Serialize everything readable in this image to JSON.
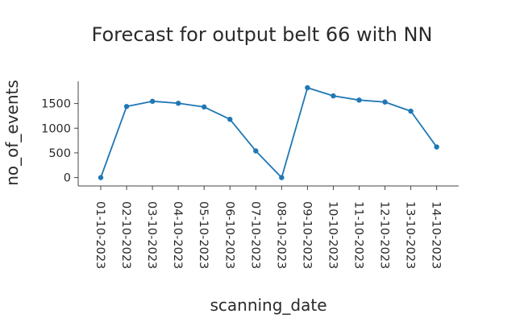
{
  "chart_data": {
    "type": "line",
    "title": "Forecast for output belt 66 with NN",
    "xlabel": "scanning_date",
    "ylabel": "no_of_events",
    "x": [
      "01-10-2023",
      "02-10-2023",
      "03-10-2023",
      "04-10-2023",
      "05-10-2023",
      "06-10-2023",
      "07-10-2023",
      "08-10-2023",
      "09-10-2023",
      "10-10-2023",
      "11-10-2023",
      "12-10-2023",
      "13-10-2023",
      "14-10-2023"
    ],
    "series": [
      {
        "values": [
          0,
          1440,
          1545,
          1505,
          1430,
          1180,
          540,
          0,
          1820,
          1655,
          1570,
          1530,
          1345,
          620
        ],
        "color": "#1f77b4"
      }
    ],
    "yticks": [
      0,
      500,
      1000,
      1500
    ],
    "ytick_labels": [
      "0",
      "500",
      "1000",
      "1500"
    ],
    "ylim": [
      -170,
      1950
    ],
    "grid": false,
    "legend": "none"
  }
}
